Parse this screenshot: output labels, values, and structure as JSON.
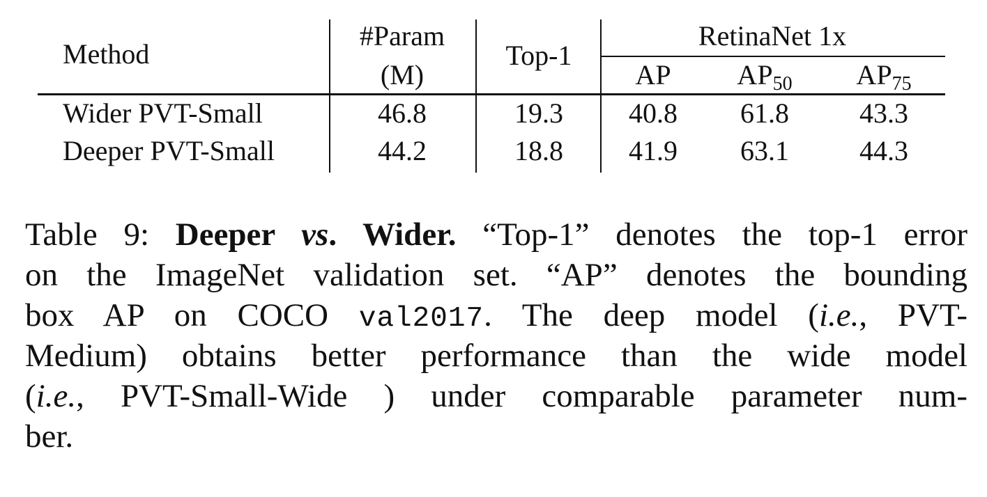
{
  "table": {
    "headers": {
      "method": "Method",
      "param_line1": "#Param",
      "param_line2": "(M)",
      "top1": "Top-1",
      "group": "RetinaNet 1x",
      "ap": "AP",
      "ap50_base": "AP",
      "ap50_sub": "50",
      "ap75_base": "AP",
      "ap75_sub": "75"
    },
    "rows": [
      {
        "method": "Wider PVT-Small",
        "param": "46.8",
        "top1": "19.3",
        "ap": "40.8",
        "ap50": "61.8",
        "ap75": "43.3"
      },
      {
        "method": "Deeper PVT-Small",
        "param": "44.2",
        "top1": "18.8",
        "ap": "41.9",
        "ap50": "63.1",
        "ap75": "44.3"
      }
    ]
  },
  "caption": {
    "label": "Table 9: ",
    "bold1": "Deeper ",
    "bold_italic": "vs",
    "bold2": ". Wider.",
    "l1_rest": " “Top-1” denotes the top-1 error",
    "l2": "on the ImageNet validation set. “AP” denotes the bounding",
    "l3_a": "box AP on COCO ",
    "l3_mono": "val2017",
    "l3_b": ". The deep model (",
    "l3_ie": "i.e.",
    "l3_c": ", PVT-",
    "l4": "Medium) obtains better performance than the wide model",
    "l5_a": "(",
    "l5_ie": "i.e.",
    "l5_b": ", PVT-Small-Wide ) under comparable parameter num-",
    "l6": "ber."
  }
}
